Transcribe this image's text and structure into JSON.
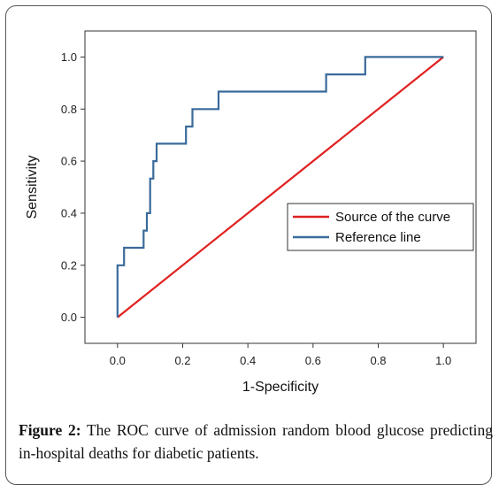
{
  "chart_data": {
    "type": "line",
    "xlabel": "1-Specificity",
    "ylabel": "Sensitivity",
    "xlim": [
      -0.1,
      1.1
    ],
    "ylim": [
      -0.1,
      1.1
    ],
    "xticks": [
      "0.0",
      "0.2",
      "0.4",
      "0.6",
      "0.8",
      "1.0"
    ],
    "yticks": [
      "0.0",
      "0.2",
      "0.4",
      "0.6",
      "0.8",
      "1.0"
    ],
    "legend_position": "center-right",
    "series": [
      {
        "name": "Source of the curve",
        "color": "#e02020",
        "x": [
          0.0,
          1.0
        ],
        "y": [
          0.0,
          1.0
        ]
      },
      {
        "name": "Reference line",
        "color": "#3a6a9a",
        "step": true,
        "x": [
          0.0,
          0.0,
          0.02,
          0.02,
          0.08,
          0.08,
          0.09,
          0.09,
          0.1,
          0.1,
          0.11,
          0.11,
          0.12,
          0.12,
          0.21,
          0.21,
          0.23,
          0.23,
          0.31,
          0.31,
          0.64,
          0.64,
          0.76,
          0.76,
          1.0
        ],
        "y": [
          0.0,
          0.2,
          0.2,
          0.267,
          0.267,
          0.333,
          0.333,
          0.4,
          0.4,
          0.533,
          0.533,
          0.6,
          0.6,
          0.667,
          0.667,
          0.733,
          0.733,
          0.8,
          0.8,
          0.867,
          0.867,
          0.933,
          0.933,
          1.0,
          1.0
        ]
      }
    ]
  },
  "caption": {
    "label": "Figure 2:",
    "text": " The ROC curve of admission random blood glucose predicting in-hospital deaths for diabetic patients."
  }
}
